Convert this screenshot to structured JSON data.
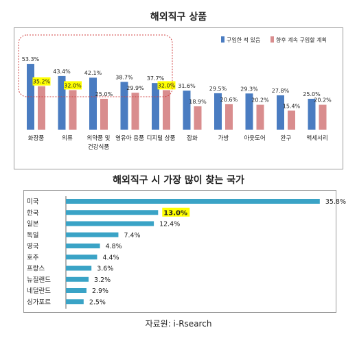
{
  "source": "자료원: i-Rsearch",
  "colors": {
    "bar_blue": "#4a7cc1",
    "bar_pink": "#d98d8e",
    "bar_cyan": "#3aa3c6",
    "highlight": "#ffff00",
    "dash": "#d04040"
  },
  "chart_data": [
    {
      "type": "bar",
      "title": "해외직구 상품",
      "categories": [
        "화장품",
        "의류",
        "의약품 및 건강식품",
        "영유아 용품",
        "디지털 상품",
        "잡화",
        "가방",
        "아웃도어",
        "완구",
        "액세서리"
      ],
      "category_lines": [
        [
          "화장품"
        ],
        [
          "의류"
        ],
        [
          "의약품 및",
          "건강식품"
        ],
        [
          "영유아 용품"
        ],
        [
          "디지털 상품"
        ],
        [
          "잡화"
        ],
        [
          "가방"
        ],
        [
          "아웃도어"
        ],
        [
          "완구"
        ],
        [
          "액세서리"
        ]
      ],
      "series": [
        {
          "name": "구입한 적 있음",
          "values": [
            53.3,
            43.4,
            42.1,
            38.7,
            37.7,
            31.6,
            29.5,
            29.3,
            27.8,
            25.0
          ],
          "labels": [
            "53.3%",
            "43.4%",
            "42.1%",
            "38.7%",
            "37.7%",
            "31.6%",
            "29.5%",
            "29.3%",
            "27.8%",
            "25.0%"
          ]
        },
        {
          "name": "향후 계속 구입할 계획",
          "values": [
            35.2,
            32.0,
            25.0,
            29.9,
            32.0,
            18.9,
            20.6,
            20.2,
            15.4,
            20.2
          ],
          "labels": [
            "35.2%",
            "32.0%",
            "25.0%",
            "29.9%",
            "32.0%",
            "18.9%",
            "20.6%",
            "20.2%",
            "15.4%",
            "20.2%"
          ]
        }
      ],
      "highlighted_labels": [
        [
          1,
          0
        ],
        [
          1,
          1
        ],
        [
          1,
          4
        ]
      ],
      "ylim": [
        0,
        60
      ],
      "legend_position": "top-right",
      "grid": false
    },
    {
      "type": "bar",
      "orientation": "horizontal",
      "title": "해외직구 시 가장 많이 찾는 국가",
      "categories": [
        "미국",
        "한국",
        "일본",
        "독일",
        "영국",
        "호주",
        "프랑스",
        "뉴질랜드",
        "네덜란드",
        "싱가포르"
      ],
      "values": [
        35.8,
        13.0,
        12.4,
        7.4,
        4.8,
        4.4,
        3.6,
        3.2,
        2.9,
        2.5
      ],
      "labels": [
        "35.8%",
        "13.0%",
        "12.4%",
        "7.4%",
        "4.8%",
        "4.4%",
        "3.6%",
        "3.2%",
        "2.9%",
        "2.5%"
      ],
      "highlighted_index": 1,
      "xlim": [
        0,
        40
      ],
      "grid": false
    }
  ]
}
